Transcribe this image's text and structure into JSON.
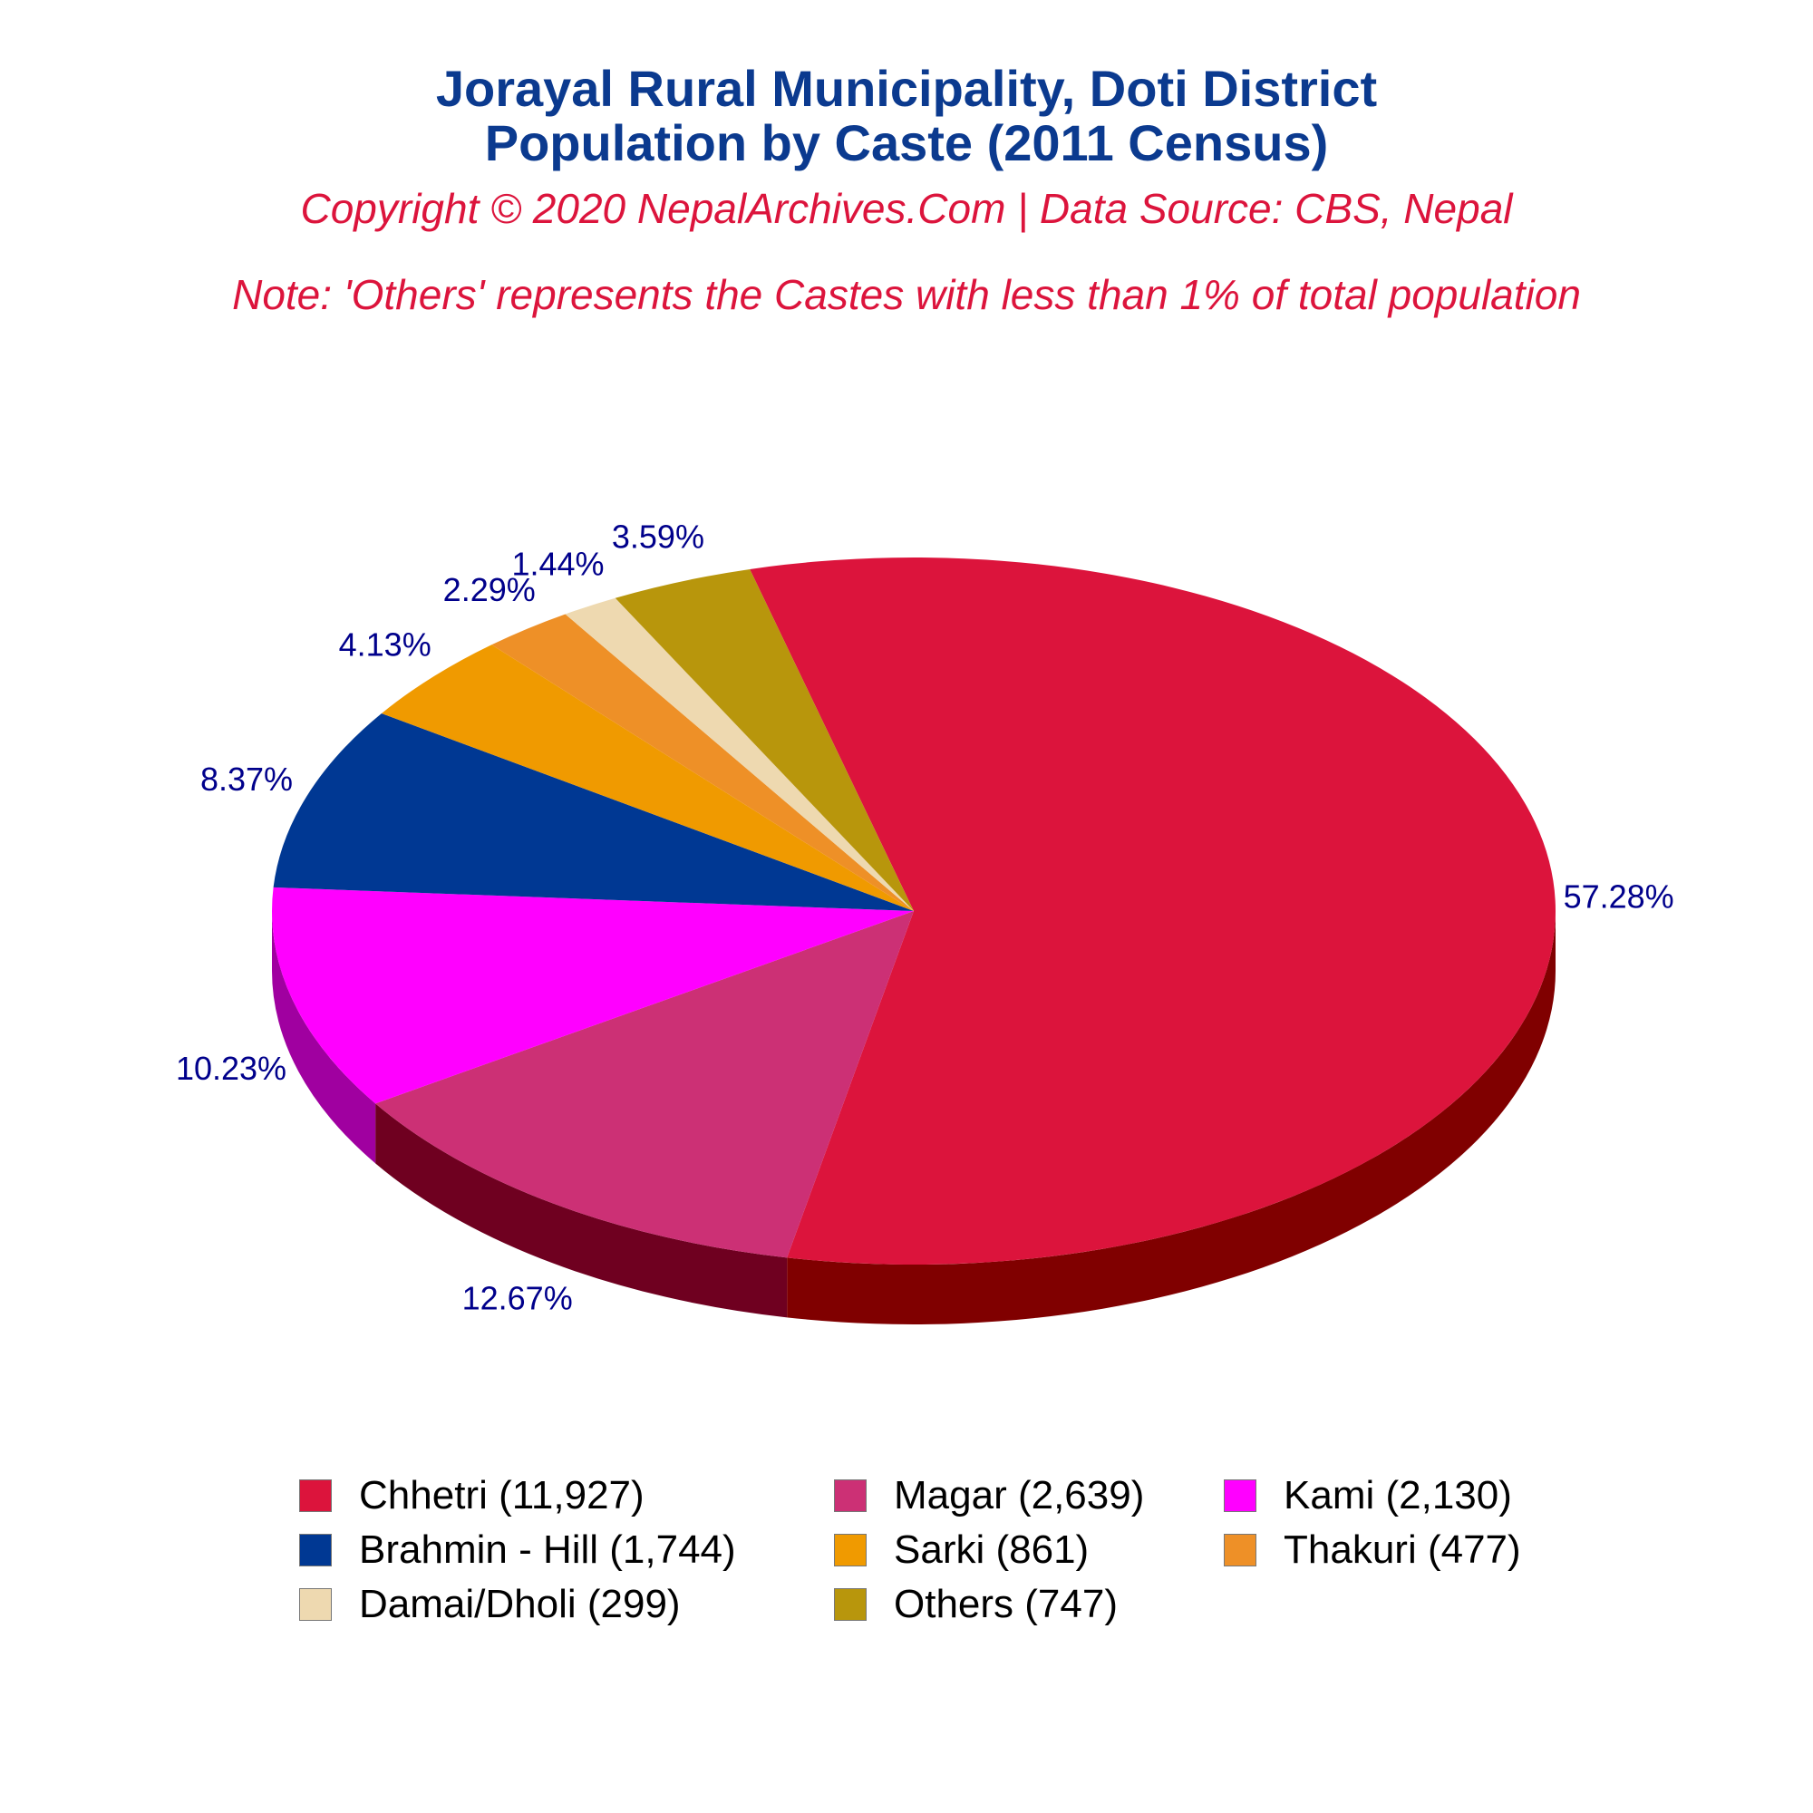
{
  "titles": {
    "line1": "Jorayal Rural Municipality, Doti District",
    "line2": "Population by Caste (2011 Census)",
    "copyright": "Copyright © 2020 NepalArchives.Com | Data Source: CBS, Nepal",
    "note": "Note: 'Others' represents the Castes with less than 1% of total population"
  },
  "chart_data": {
    "type": "pie",
    "style": "3d",
    "start_angle_deg": 104.8,
    "direction": "clockwise",
    "slices": [
      {
        "name": "Chhetri",
        "value": 11927,
        "percent": "57.28%",
        "legend": "Chhetri (11,927)",
        "color": "#dc143c",
        "side": "#800000"
      },
      {
        "name": "Magar",
        "value": 2639,
        "percent": "12.67%",
        "legend": "Magar (2,639)",
        "color": "#cc3075",
        "side": "#6f0020"
      },
      {
        "name": "Kami",
        "value": 2130,
        "percent": "10.23%",
        "legend": "Kami (2,130)",
        "color": "#ff00ff",
        "side": "#a000a0"
      },
      {
        "name": "Brahmin - Hill",
        "value": 1744,
        "percent": "8.37%",
        "legend": "Brahmin - Hill (1,744)",
        "color": "#003893",
        "side": "#000033"
      },
      {
        "name": "Sarki",
        "value": 861,
        "percent": "4.13%",
        "legend": "Sarki (861)",
        "color": "#f09a00",
        "side": "#8a5500"
      },
      {
        "name": "Thakuri",
        "value": 477,
        "percent": "2.29%",
        "legend": "Thakuri (477)",
        "color": "#ee9027",
        "side": "#8a4a10"
      },
      {
        "name": "Damai/Dholi",
        "value": 299,
        "percent": "1.44%",
        "legend": "Damai/Dholi (299)",
        "color": "#eed9b0",
        "side": "#9a8560"
      },
      {
        "name": "Others",
        "value": 747,
        "percent": "3.59%",
        "legend": "Others (747)",
        "color": "#b8960c",
        "side": "#6a5600"
      }
    ],
    "legend_placement": "bottom",
    "legend_columns": 3
  }
}
